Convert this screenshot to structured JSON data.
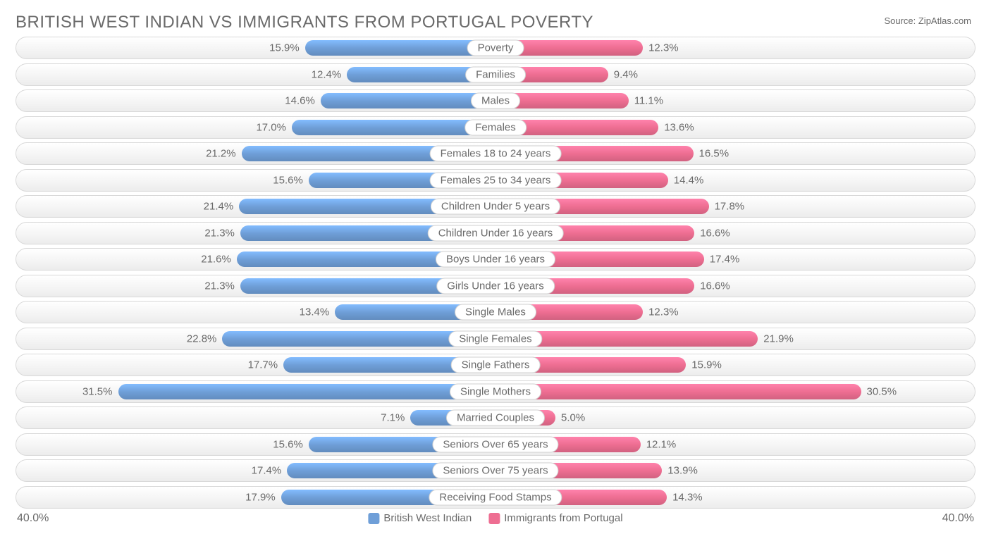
{
  "title": "BRITISH WEST INDIAN VS IMMIGRANTS FROM PORTUGAL POVERTY",
  "source": "Source: ZipAtlas.com",
  "chart": {
    "type": "bar",
    "layout": "diverging-horizontal",
    "axis_max": 40.0,
    "axis_label_left": "40.0%",
    "axis_label_right": "40.0%",
    "background_color": "#ffffff",
    "track_border_color": "#d9d9d9",
    "text_color": "#6a6a6a",
    "series": [
      {
        "name": "British West Indian",
        "color": "#6f9fd8",
        "side": "left"
      },
      {
        "name": "Immigrants from Portugal",
        "color": "#ee6e92",
        "side": "right"
      }
    ],
    "rows": [
      {
        "category": "Poverty",
        "left_value": 15.9,
        "left_label": "15.9%",
        "right_value": 12.3,
        "right_label": "12.3%"
      },
      {
        "category": "Families",
        "left_value": 12.4,
        "left_label": "12.4%",
        "right_value": 9.4,
        "right_label": "9.4%"
      },
      {
        "category": "Males",
        "left_value": 14.6,
        "left_label": "14.6%",
        "right_value": 11.1,
        "right_label": "11.1%"
      },
      {
        "category": "Females",
        "left_value": 17.0,
        "left_label": "17.0%",
        "right_value": 13.6,
        "right_label": "13.6%"
      },
      {
        "category": "Females 18 to 24 years",
        "left_value": 21.2,
        "left_label": "21.2%",
        "right_value": 16.5,
        "right_label": "16.5%"
      },
      {
        "category": "Females 25 to 34 years",
        "left_value": 15.6,
        "left_label": "15.6%",
        "right_value": 14.4,
        "right_label": "14.4%"
      },
      {
        "category": "Children Under 5 years",
        "left_value": 21.4,
        "left_label": "21.4%",
        "right_value": 17.8,
        "right_label": "17.8%"
      },
      {
        "category": "Children Under 16 years",
        "left_value": 21.3,
        "left_label": "21.3%",
        "right_value": 16.6,
        "right_label": "16.6%"
      },
      {
        "category": "Boys Under 16 years",
        "left_value": 21.6,
        "left_label": "21.6%",
        "right_value": 17.4,
        "right_label": "17.4%"
      },
      {
        "category": "Girls Under 16 years",
        "left_value": 21.3,
        "left_label": "21.3%",
        "right_value": 16.6,
        "right_label": "16.6%"
      },
      {
        "category": "Single Males",
        "left_value": 13.4,
        "left_label": "13.4%",
        "right_value": 12.3,
        "right_label": "12.3%"
      },
      {
        "category": "Single Females",
        "left_value": 22.8,
        "left_label": "22.8%",
        "right_value": 21.9,
        "right_label": "21.9%"
      },
      {
        "category": "Single Fathers",
        "left_value": 17.7,
        "left_label": "17.7%",
        "right_value": 15.9,
        "right_label": "15.9%"
      },
      {
        "category": "Single Mothers",
        "left_value": 31.5,
        "left_label": "31.5%",
        "right_value": 30.5,
        "right_label": "30.5%"
      },
      {
        "category": "Married Couples",
        "left_value": 7.1,
        "left_label": "7.1%",
        "right_value": 5.0,
        "right_label": "5.0%"
      },
      {
        "category": "Seniors Over 65 years",
        "left_value": 15.6,
        "left_label": "15.6%",
        "right_value": 12.1,
        "right_label": "12.1%"
      },
      {
        "category": "Seniors Over 75 years",
        "left_value": 17.4,
        "left_label": "17.4%",
        "right_value": 13.9,
        "right_label": "13.9%"
      },
      {
        "category": "Receiving Food Stamps",
        "left_value": 17.9,
        "left_label": "17.9%",
        "right_value": 14.3,
        "right_label": "14.3%"
      }
    ]
  }
}
